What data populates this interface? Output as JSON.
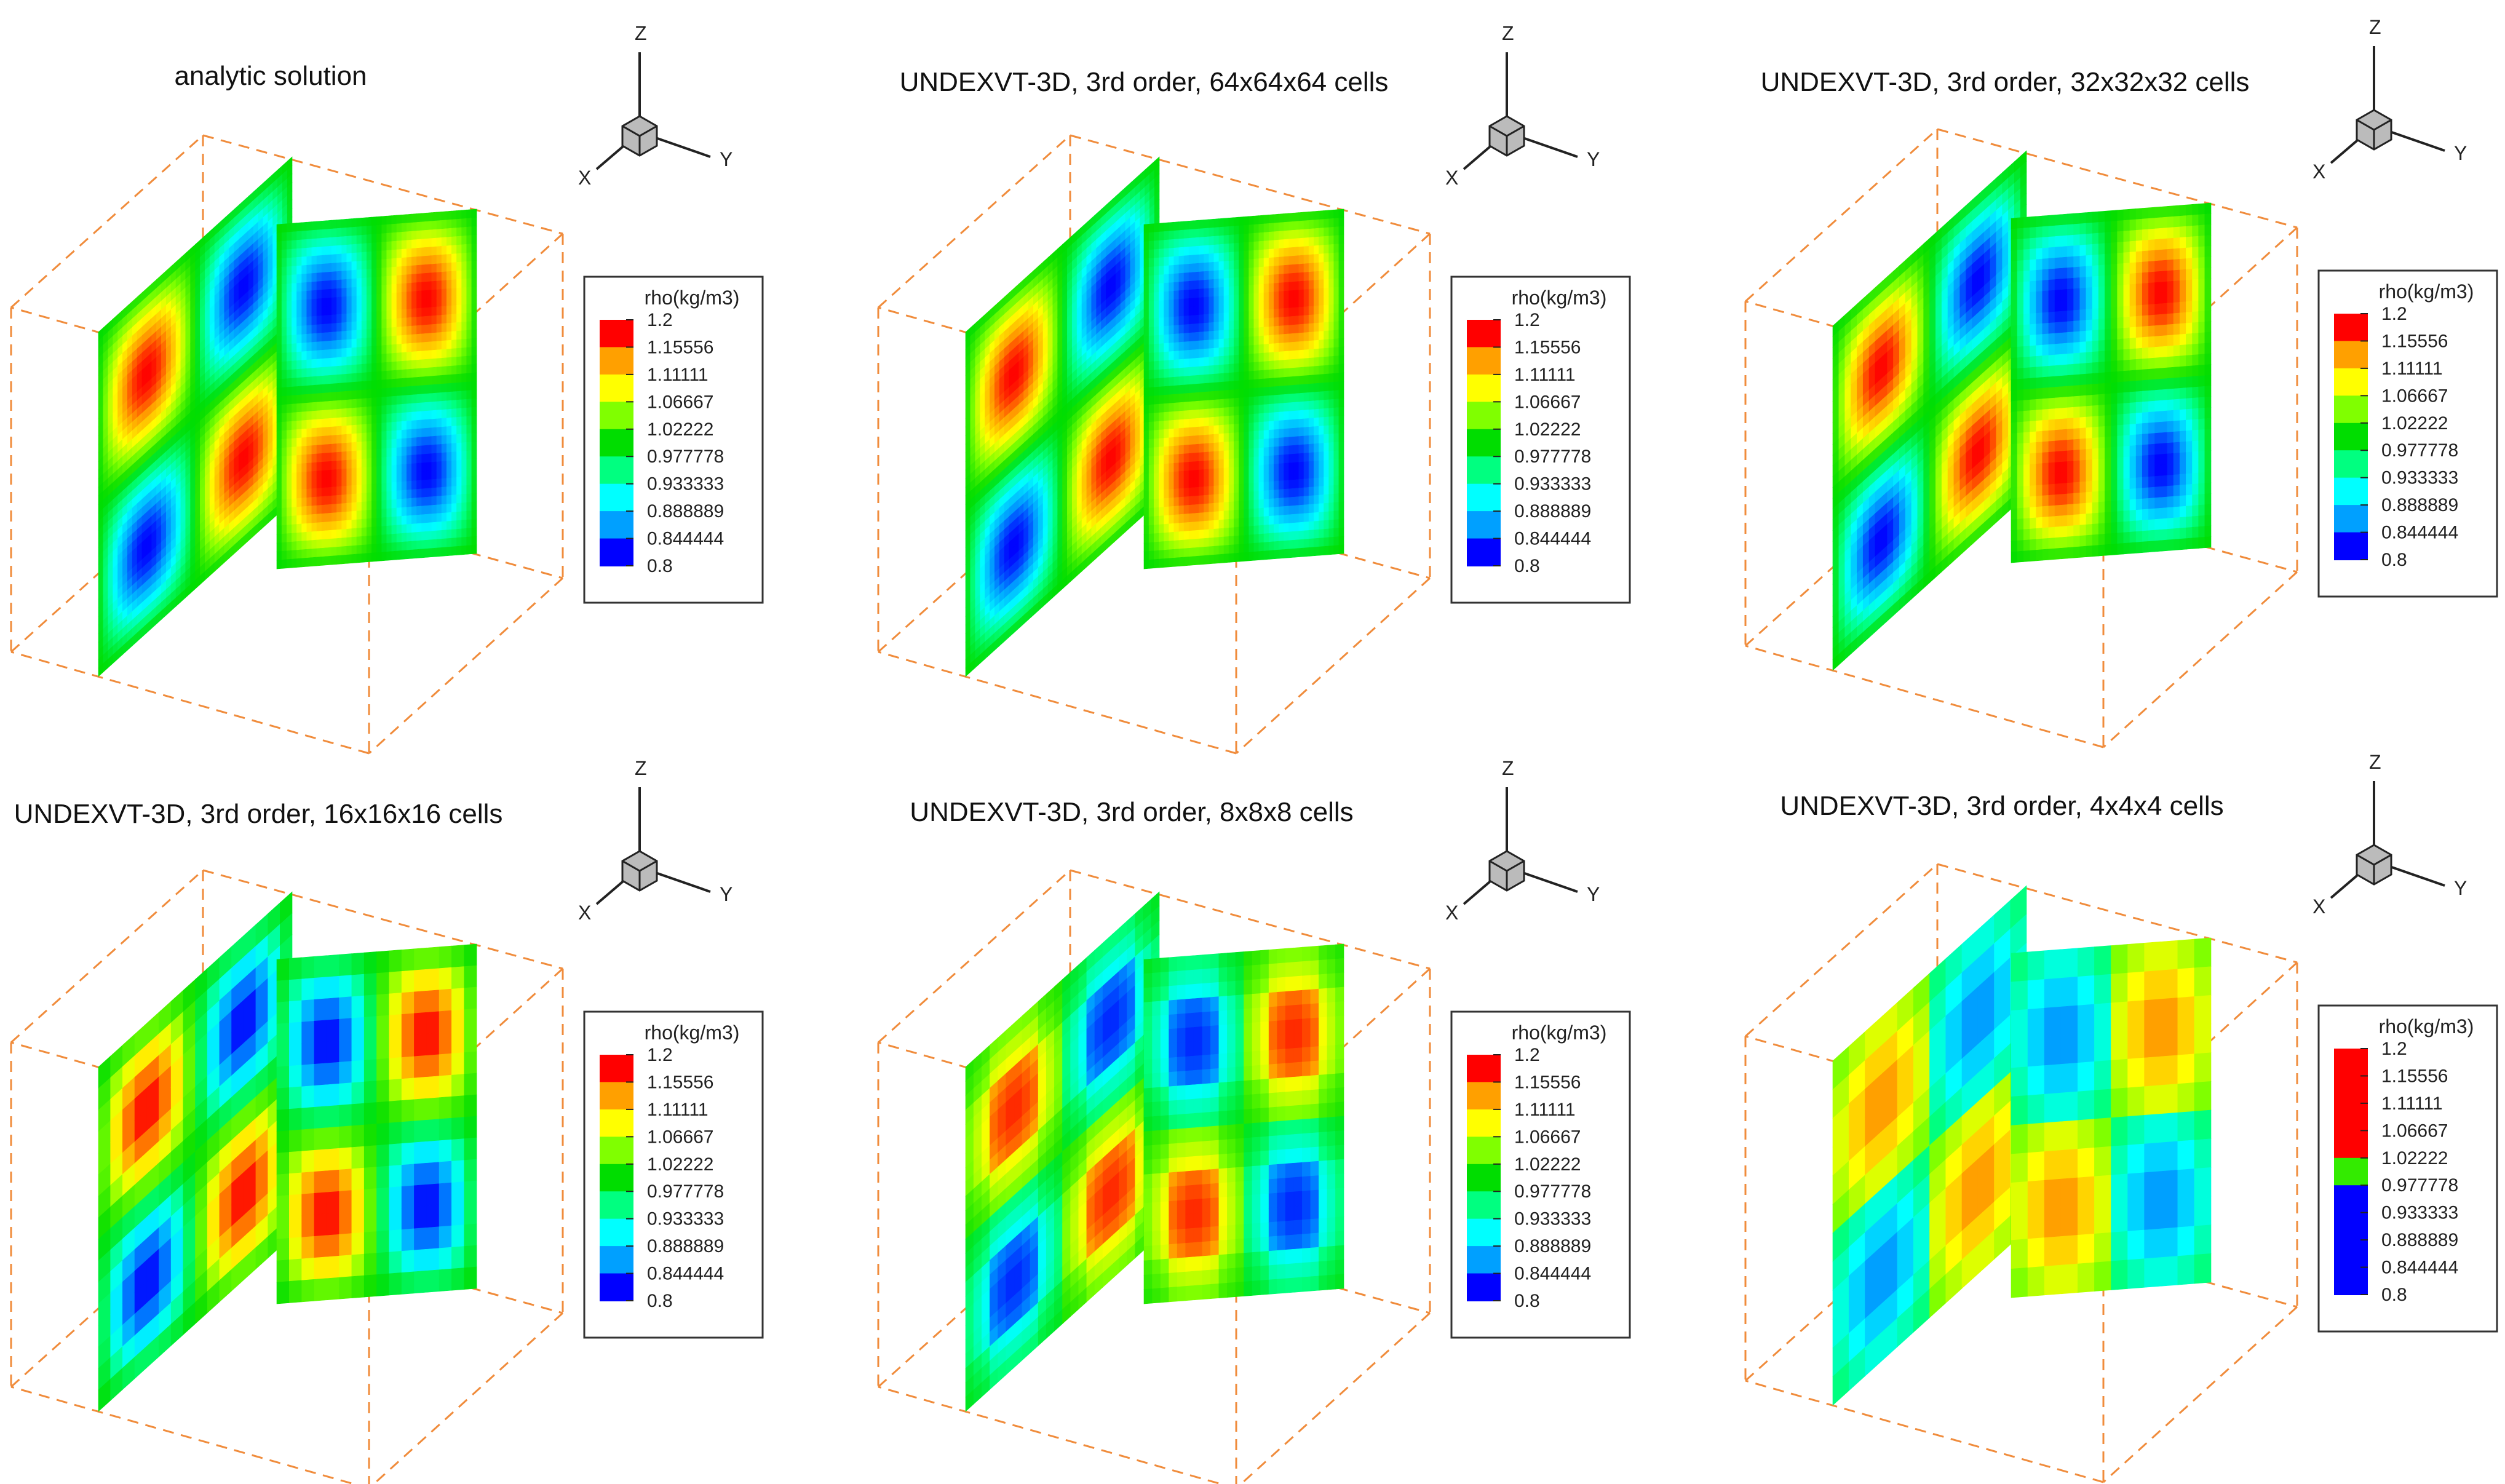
{
  "figure": {
    "variable": "rho(kg/m3)",
    "colorbar_ticks": [
      "1.2",
      "1.15556",
      "1.11111",
      "1.06667",
      "1.02222",
      "0.977778",
      "0.933333",
      "0.888889",
      "0.844444",
      "0.8"
    ],
    "colormap": [
      "#0000ff",
      "#00a0ff",
      "#00ffff",
      "#00ff80",
      "#00dd00",
      "#80ff00",
      "#ffff00",
      "#ffa000",
      "#ff0000"
    ],
    "box_color": "#f08c3c",
    "axes_labels": {
      "x": "X",
      "y": "Y",
      "z": "Z"
    }
  },
  "chart_data": [
    {
      "type": "heatmap",
      "title": "analytic solution",
      "cells": null,
      "vmin": 0.8,
      "vmax": 1.2
    },
    {
      "type": "heatmap",
      "title": "UNDEXVT-3D, 3rd order, 64x64x64 cells",
      "cells": 64,
      "vmin": 0.8,
      "vmax": 1.2
    },
    {
      "type": "heatmap",
      "title": "UNDEXVT-3D, 3rd order, 32x32x32 cells",
      "cells": 32,
      "vmin": 0.8,
      "vmax": 1.2
    },
    {
      "type": "heatmap",
      "title": "UNDEXVT-3D, 3rd order, 16x16x16 cells",
      "cells": 16,
      "vmin": 0.8,
      "vmax": 1.2
    },
    {
      "type": "heatmap",
      "title": "UNDEXVT-3D, 3rd order, 8x8x8 cells",
      "cells": 8,
      "vmin": 0.8,
      "vmax": 1.2
    },
    {
      "type": "heatmap",
      "title": "UNDEXVT-3D, 3rd order, 4x4x4 cells",
      "cells": 4,
      "vmin": 0.8,
      "vmax": 1.2
    }
  ]
}
